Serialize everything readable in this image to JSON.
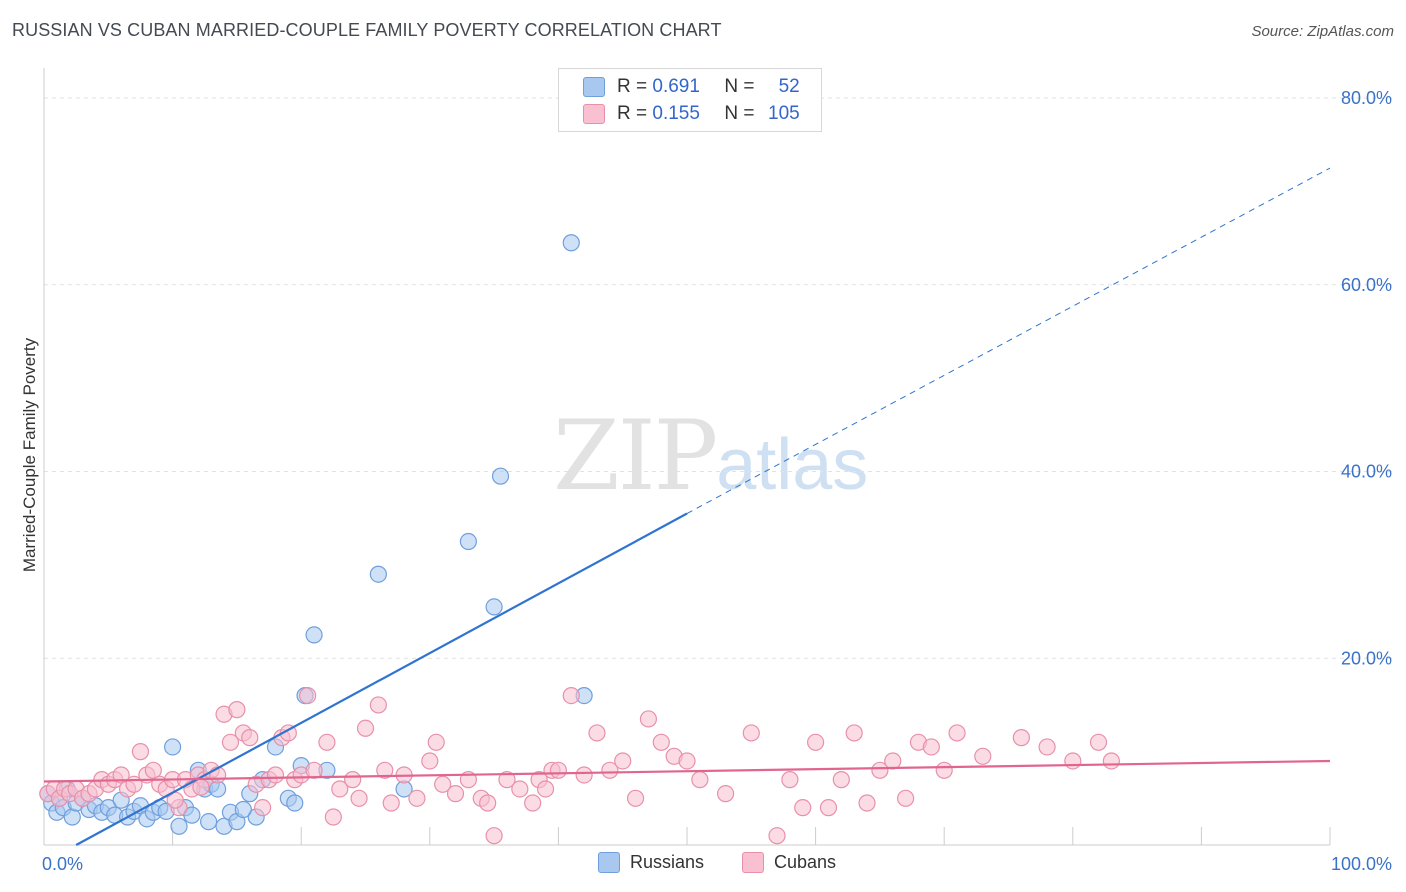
{
  "title": "RUSSIAN VS CUBAN MARRIED-COUPLE FAMILY POVERTY CORRELATION CHART",
  "source": "Source: ZipAtlas.com",
  "watermark": {
    "zip": "ZIP",
    "atlas": "atlas"
  },
  "legend_box": {
    "rows": [
      {
        "r_label": "R = ",
        "r_value": "0.691",
        "n_label": "N = ",
        "n_value": "52",
        "color": "#a8c8f0",
        "border": "#6f9fdc"
      },
      {
        "r_label": "R = ",
        "r_value": "0.155",
        "n_label": "N = ",
        "n_value": "105",
        "color": "#f8c0d0",
        "border": "#e890aa"
      }
    ]
  },
  "bottom_legend": [
    {
      "label": "Russians",
      "color": "#a8c8f0",
      "border": "#6f9fdc"
    },
    {
      "label": "Cubans",
      "color": "#f8c0d0",
      "border": "#e890aa"
    }
  ],
  "chart_data": {
    "type": "scatter",
    "title": "RUSSIAN VS CUBAN MARRIED-COUPLE FAMILY POVERTY CORRELATION CHART",
    "xlabel": "",
    "ylabel": "Married-Couple Family Poverty",
    "xlim": [
      0,
      100
    ],
    "ylim": [
      0,
      83
    ],
    "x_tick_labels": [
      {
        "value": 0,
        "label": "0.0%"
      },
      {
        "value": 100,
        "label": "100.0%"
      }
    ],
    "y_tick_labels": [
      {
        "value": 20,
        "label": "20.0%"
      },
      {
        "value": 40,
        "label": "40.0%"
      },
      {
        "value": 60,
        "label": "60.0%"
      },
      {
        "value": 80,
        "label": "80.0%"
      }
    ],
    "y_gridlines": [
      20,
      40,
      60,
      80
    ],
    "x_minor_ticks": [
      0,
      10,
      20,
      30,
      40,
      50,
      60,
      70,
      80,
      90,
      100
    ],
    "series": [
      {
        "name": "Russians",
        "color": "#a8c8f0",
        "stroke": "#6f9fdc",
        "line_color": "#2f74d0",
        "trend": {
          "x0": 2.5,
          "y0": 0,
          "x1_solid": 50,
          "y1_solid": 35.5,
          "x1_dashed": 100,
          "y1_dashed": 72.5
        },
        "points": [
          [
            0.3,
            5.5
          ],
          [
            0.6,
            4.5
          ],
          [
            1,
            3.5
          ],
          [
            1.2,
            5
          ],
          [
            1.5,
            4
          ],
          [
            1.8,
            6
          ],
          [
            2.2,
            3
          ],
          [
            2.5,
            4.5
          ],
          [
            3,
            5
          ],
          [
            3.5,
            3.8
          ],
          [
            4,
            4.2
          ],
          [
            4.5,
            3.5
          ],
          [
            5,
            4
          ],
          [
            5.5,
            3.2
          ],
          [
            6,
            4.8
          ],
          [
            6.5,
            3
          ],
          [
            7,
            3.6
          ],
          [
            7.5,
            4.2
          ],
          [
            8,
            2.8
          ],
          [
            8.5,
            3.5
          ],
          [
            9,
            4
          ],
          [
            9.5,
            3.6
          ],
          [
            10,
            10.5
          ],
          [
            10.5,
            2
          ],
          [
            11,
            4
          ],
          [
            11.5,
            3.2
          ],
          [
            12,
            8
          ],
          [
            12.5,
            6
          ],
          [
            13,
            6.5
          ],
          [
            13.5,
            6
          ],
          [
            14,
            2
          ],
          [
            14.5,
            3.5
          ],
          [
            15,
            2.5
          ],
          [
            16,
            5.5
          ],
          [
            16.5,
            3
          ],
          [
            17,
            7
          ],
          [
            18,
            10.5
          ],
          [
            19,
            5
          ],
          [
            20,
            8.5
          ],
          [
            20.3,
            16
          ],
          [
            21,
            22.5
          ],
          [
            22,
            8
          ],
          [
            26,
            29
          ],
          [
            28,
            6
          ],
          [
            33,
            32.5
          ],
          [
            35,
            25.5
          ],
          [
            35.5,
            39.5
          ],
          [
            41,
            64.5
          ],
          [
            42,
            16
          ],
          [
            12.8,
            2.5
          ],
          [
            15.5,
            3.8
          ],
          [
            19.5,
            4.5
          ]
        ]
      },
      {
        "name": "Cubans",
        "color": "#f8c0d0",
        "stroke": "#e890aa",
        "line_color": "#e06690",
        "trend": {
          "x0": 0,
          "y0": 6.8,
          "x1_solid": 100,
          "y1_solid": 9
        },
        "points": [
          [
            0.3,
            5.5
          ],
          [
            0.8,
            6
          ],
          [
            1.2,
            5
          ],
          [
            1.6,
            6
          ],
          [
            2,
            5.5
          ],
          [
            2.5,
            6
          ],
          [
            3,
            5
          ],
          [
            3.5,
            5.5
          ],
          [
            4,
            6
          ],
          [
            4.5,
            7
          ],
          [
            5,
            6.5
          ],
          [
            5.5,
            7
          ],
          [
            6,
            7.5
          ],
          [
            6.5,
            6
          ],
          [
            7,
            6.5
          ],
          [
            7.5,
            10
          ],
          [
            8,
            7.5
          ],
          [
            8.5,
            8
          ],
          [
            9,
            6.5
          ],
          [
            9.5,
            6
          ],
          [
            10,
            7
          ],
          [
            10.5,
            4
          ],
          [
            11,
            7
          ],
          [
            11.5,
            6
          ],
          [
            12,
            7.5
          ],
          [
            12.5,
            7
          ],
          [
            13,
            8
          ],
          [
            13.5,
            7.5
          ],
          [
            14,
            14
          ],
          [
            14.5,
            11
          ],
          [
            15,
            14.5
          ],
          [
            15.5,
            12
          ],
          [
            16,
            11.5
          ],
          [
            16.5,
            6.5
          ],
          [
            17,
            4
          ],
          [
            17.5,
            7
          ],
          [
            18,
            7.5
          ],
          [
            18.5,
            11.5
          ],
          [
            19,
            12
          ],
          [
            19.5,
            7
          ],
          [
            20,
            7.5
          ],
          [
            20.5,
            16
          ],
          [
            21,
            8
          ],
          [
            22,
            11
          ],
          [
            22.5,
            3
          ],
          [
            23,
            6
          ],
          [
            24,
            7
          ],
          [
            25,
            12.5
          ],
          [
            26,
            15
          ],
          [
            26.5,
            8
          ],
          [
            27,
            4.5
          ],
          [
            28,
            7.5
          ],
          [
            29,
            5
          ],
          [
            30,
            9
          ],
          [
            30.5,
            11
          ],
          [
            31,
            6.5
          ],
          [
            32,
            5.5
          ],
          [
            33,
            7
          ],
          [
            34,
            5
          ],
          [
            34.5,
            4.5
          ],
          [
            35,
            1
          ],
          [
            36,
            7
          ],
          [
            37,
            6
          ],
          [
            38,
            4.5
          ],
          [
            38.5,
            7
          ],
          [
            39,
            6
          ],
          [
            39.5,
            8
          ],
          [
            40,
            8
          ],
          [
            41,
            16
          ],
          [
            42,
            7.5
          ],
          [
            43,
            12
          ],
          [
            45,
            9
          ],
          [
            46,
            5
          ],
          [
            47,
            13.5
          ],
          [
            48,
            11
          ],
          [
            49,
            9.5
          ],
          [
            50,
            9
          ],
          [
            51,
            7
          ],
          [
            53,
            5.5
          ],
          [
            55,
            12
          ],
          [
            57,
            1
          ],
          [
            58,
            7
          ],
          [
            59,
            4
          ],
          [
            60,
            11
          ],
          [
            61,
            4
          ],
          [
            62,
            7
          ],
          [
            63,
            12
          ],
          [
            64,
            4.5
          ],
          [
            65,
            8
          ],
          [
            66,
            9
          ],
          [
            67,
            5
          ],
          [
            68,
            11
          ],
          [
            69,
            10.5
          ],
          [
            70,
            8
          ],
          [
            71,
            12
          ],
          [
            73,
            9.5
          ],
          [
            76,
            11.5
          ],
          [
            78,
            10.5
          ],
          [
            80,
            9
          ],
          [
            82,
            11
          ],
          [
            83,
            9
          ],
          [
            10.2,
            4.8
          ],
          [
            12.2,
            6.2
          ],
          [
            24.5,
            5
          ],
          [
            44,
            8
          ]
        ]
      }
    ]
  }
}
